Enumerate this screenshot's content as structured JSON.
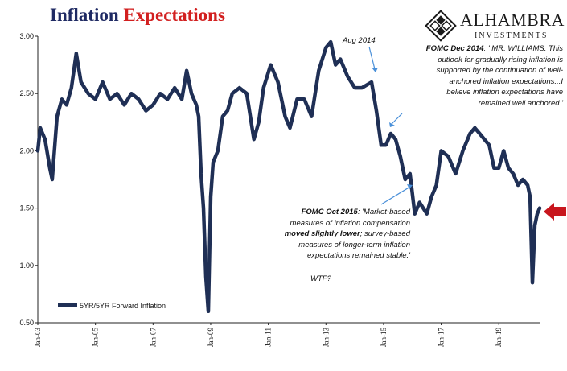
{
  "header": {
    "title_part1": "Inflation",
    "title_part2": "Expectations",
    "title_color1": "#1f2a63",
    "title_color2": "#d21f1f"
  },
  "logo": {
    "wordmark": "ALHAMBRA",
    "subtext": "INVESTMENTS",
    "icon": "diamond-pattern-icon"
  },
  "chart_data": {
    "type": "line",
    "title": "Inflation Expectations",
    "series": [
      {
        "name": "5YR/5YR Forward Inflation",
        "color": "#1f2f55",
        "points": [
          [
            "2003-01",
            2.0
          ],
          [
            "2003-02",
            2.2
          ],
          [
            "2003-04",
            2.1
          ],
          [
            "2003-06",
            1.85
          ],
          [
            "2003-07",
            1.75
          ],
          [
            "2003-09",
            2.3
          ],
          [
            "2003-11",
            2.45
          ],
          [
            "2004-01",
            2.4
          ],
          [
            "2004-03",
            2.55
          ],
          [
            "2004-05",
            2.85
          ],
          [
            "2004-07",
            2.6
          ],
          [
            "2004-10",
            2.5
          ],
          [
            "2005-01",
            2.45
          ],
          [
            "2005-04",
            2.6
          ],
          [
            "2005-07",
            2.45
          ],
          [
            "2005-10",
            2.5
          ],
          [
            "2006-01",
            2.4
          ],
          [
            "2006-04",
            2.5
          ],
          [
            "2006-07",
            2.45
          ],
          [
            "2006-10",
            2.35
          ],
          [
            "2007-01",
            2.4
          ],
          [
            "2007-04",
            2.5
          ],
          [
            "2007-07",
            2.45
          ],
          [
            "2007-10",
            2.55
          ],
          [
            "2008-01",
            2.45
          ],
          [
            "2008-03",
            2.7
          ],
          [
            "2008-05",
            2.5
          ],
          [
            "2008-07",
            2.4
          ],
          [
            "2008-08",
            2.3
          ],
          [
            "2008-09",
            1.8
          ],
          [
            "2008-10",
            1.5
          ],
          [
            "2008-11",
            0.9
          ],
          [
            "2008-12",
            0.6
          ],
          [
            "2009-01",
            1.6
          ],
          [
            "2009-02",
            1.9
          ],
          [
            "2009-04",
            2.0
          ],
          [
            "2009-06",
            2.3
          ],
          [
            "2009-08",
            2.35
          ],
          [
            "2009-10",
            2.5
          ],
          [
            "2010-01",
            2.55
          ],
          [
            "2010-04",
            2.5
          ],
          [
            "2010-07",
            2.1
          ],
          [
            "2010-09",
            2.25
          ],
          [
            "2010-11",
            2.55
          ],
          [
            "2011-02",
            2.75
          ],
          [
            "2011-05",
            2.6
          ],
          [
            "2011-08",
            2.3
          ],
          [
            "2011-10",
            2.2
          ],
          [
            "2012-01",
            2.45
          ],
          [
            "2012-04",
            2.45
          ],
          [
            "2012-07",
            2.3
          ],
          [
            "2012-10",
            2.7
          ],
          [
            "2013-01",
            2.9
          ],
          [
            "2013-03",
            2.95
          ],
          [
            "2013-05",
            2.75
          ],
          [
            "2013-07",
            2.8
          ],
          [
            "2013-10",
            2.65
          ],
          [
            "2014-01",
            2.55
          ],
          [
            "2014-04",
            2.55
          ],
          [
            "2014-08",
            2.6
          ],
          [
            "2014-10",
            2.35
          ],
          [
            "2014-12",
            2.05
          ],
          [
            "2015-02",
            2.05
          ],
          [
            "2015-04",
            2.15
          ],
          [
            "2015-06",
            2.1
          ],
          [
            "2015-08",
            1.95
          ],
          [
            "2015-10",
            1.75
          ],
          [
            "2015-12",
            1.8
          ],
          [
            "2016-02",
            1.45
          ],
          [
            "2016-04",
            1.55
          ],
          [
            "2016-07",
            1.45
          ],
          [
            "2016-09",
            1.6
          ],
          [
            "2016-11",
            1.7
          ],
          [
            "2017-01",
            2.0
          ],
          [
            "2017-04",
            1.95
          ],
          [
            "2017-07",
            1.8
          ],
          [
            "2017-10",
            2.0
          ],
          [
            "2018-01",
            2.15
          ],
          [
            "2018-03",
            2.2
          ],
          [
            "2018-05",
            2.15
          ],
          [
            "2018-07",
            2.1
          ],
          [
            "2018-09",
            2.05
          ],
          [
            "2018-11",
            1.85
          ],
          [
            "2019-01",
            1.85
          ],
          [
            "2019-03",
            2.0
          ],
          [
            "2019-05",
            1.85
          ],
          [
            "2019-07",
            1.8
          ],
          [
            "2019-09",
            1.7
          ],
          [
            "2019-11",
            1.75
          ],
          [
            "2020-01",
            1.7
          ],
          [
            "2020-02",
            1.6
          ],
          [
            "2020-03",
            0.85
          ],
          [
            "2020-04",
            1.35
          ],
          [
            "2020-05",
            1.45
          ],
          [
            "2020-06",
            1.5
          ]
        ]
      }
    ],
    "x_tick_labels": [
      "Jan-03",
      "Jan-05",
      "Jan-07",
      "Jan-09",
      "Jan-11",
      "Jan-13",
      "Jan-15",
      "Jan-17",
      "Jan-19"
    ],
    "x_tick_dates": [
      "2003-01",
      "2005-01",
      "2007-01",
      "2009-01",
      "2011-01",
      "2013-01",
      "2015-01",
      "2017-01",
      "2019-01"
    ],
    "xlim": [
      "2003-01",
      "2020-06"
    ],
    "y_tick_labels": [
      "0.50",
      "1.00",
      "1.50",
      "2.00",
      "2.50",
      "3.00"
    ],
    "ylim": [
      0.5,
      3.0
    ],
    "grid": false,
    "legend_position": "bottom-left",
    "annotations": {
      "aug2014": "Aug 2014",
      "dec2014_bold": "FOMC Dec 2014",
      "dec2014_line1": ": ' MR. WILLIAMS. This",
      "dec2014_line2": "outlook for gradually rising inflation is",
      "dec2014_line3": "supported by the continuation of well-",
      "dec2014_line4": "anchored inflation expectations...I",
      "dec2014_line5": "believe inflation expectations have",
      "dec2014_line6": "remained well anchored.'",
      "oct2015_bold": "FOMC Oct 2015",
      "oct2015_line1": ": 'Market-based",
      "oct2015_line2": "measures of inflation compensation",
      "oct2015_line3_bold": "moved slightly lower",
      "oct2015_line3": "; survey-based",
      "oct2015_line4": "measures of longer-term inflation",
      "oct2015_line5": "expectations remained stable.'",
      "wtf": "WTF?"
    },
    "arrow_color": "#c8161d",
    "pointer_color": "#4a90d9"
  }
}
